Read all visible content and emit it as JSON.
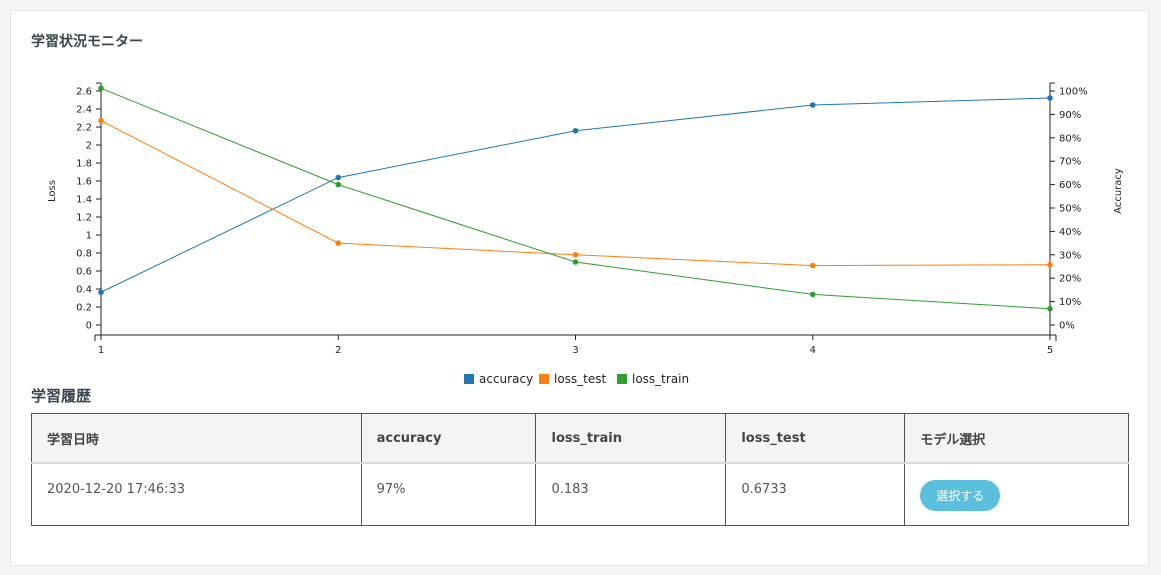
{
  "chart_section": {
    "title": "学習状況モニター"
  },
  "history_section": {
    "title": "学習履歴",
    "columns": [
      "学習日時",
      "accuracy",
      "loss_train",
      "loss_test",
      "モデル選択"
    ],
    "rows": [
      {
        "datetime": "2020-12-20 17:46:33",
        "accuracy": "97%",
        "loss_train": "0.183",
        "loss_test": "0.6733",
        "select_label": "選択する"
      }
    ]
  },
  "chart_data": {
    "type": "line",
    "x": [
      1,
      2,
      3,
      4,
      5
    ],
    "xlim": [
      1,
      5
    ],
    "y_left": {
      "label": "Loss",
      "ylim": [
        0,
        2.6
      ],
      "ticks": [
        "0",
        "0.2",
        "0.4",
        "0.6",
        "0.8",
        "1",
        "1.2",
        "1.4",
        "1.6",
        "1.8",
        "2",
        "2.2",
        "2.4",
        "2.6"
      ]
    },
    "y_right": {
      "label": "Accuracy",
      "ylim": [
        0,
        100
      ],
      "ticks": [
        "0%",
        "10%",
        "20%",
        "30%",
        "40%",
        "50%",
        "60%",
        "70%",
        "80%",
        "90%",
        "100%"
      ]
    },
    "x_ticks": [
      "1",
      "2",
      "3",
      "4",
      "5"
    ],
    "series": [
      {
        "name": "accuracy",
        "axis": "right",
        "color": "#1f77b4",
        "values": [
          14,
          63,
          83,
          94,
          97
        ]
      },
      {
        "name": "loss_test",
        "axis": "left",
        "color": "#ff7f0e",
        "values": [
          2.27,
          0.91,
          0.78,
          0.66,
          0.67
        ]
      },
      {
        "name": "loss_train",
        "axis": "left",
        "color": "#2ca02c",
        "values": [
          2.63,
          1.56,
          0.7,
          0.34,
          0.18
        ]
      }
    ],
    "legend": "bottom-center"
  }
}
